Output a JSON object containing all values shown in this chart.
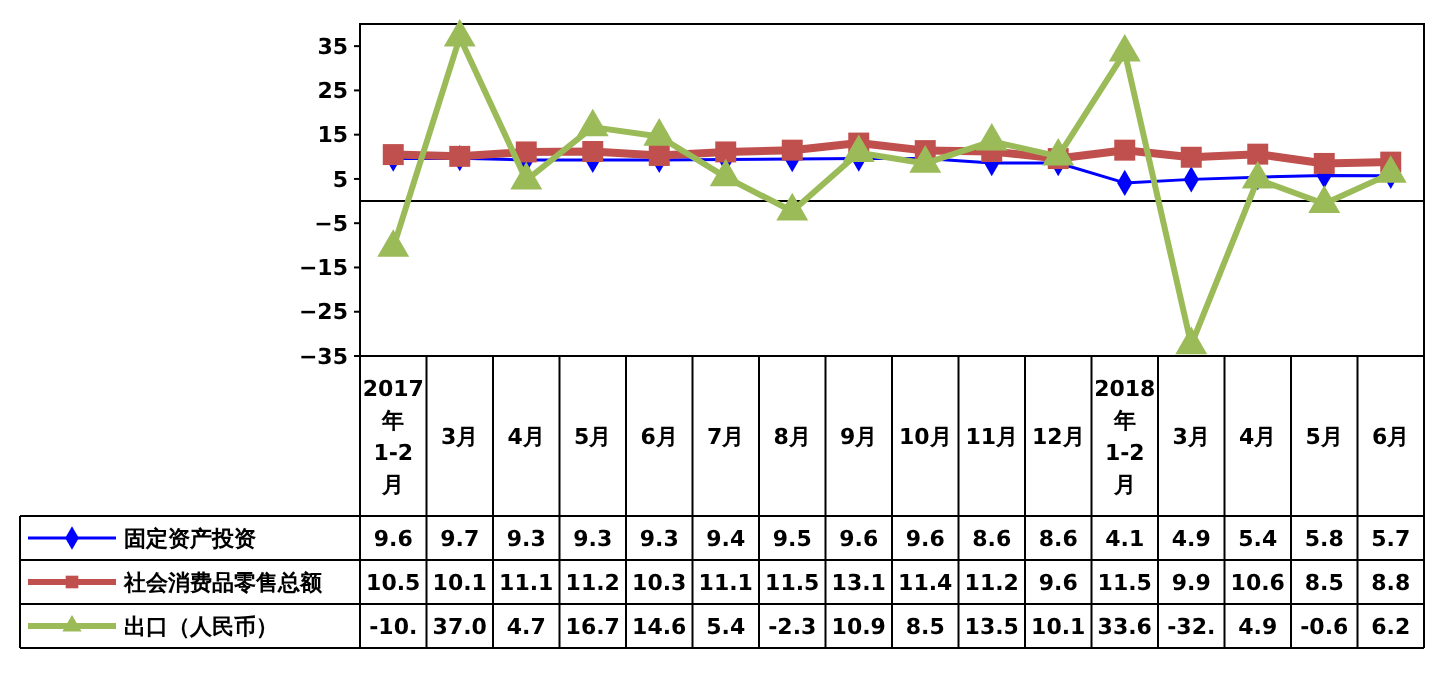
{
  "chart_data": {
    "type": "line",
    "categories": [
      "2017年1-2月",
      "3月",
      "4月",
      "5月",
      "6月",
      "7月",
      "8月",
      "9月",
      "10月",
      "11月",
      "12月",
      "2018年1-2月",
      "3月",
      "4月",
      "5月",
      "6月"
    ],
    "series": [
      {
        "name": "固定资产投资",
        "color": "#0000ff",
        "marker": "diamond",
        "values": [
          9.6,
          9.7,
          9.3,
          9.3,
          9.3,
          9.4,
          9.5,
          9.6,
          9.6,
          8.6,
          8.6,
          4.1,
          4.9,
          5.4,
          5.8,
          5.7
        ],
        "value_labels": [
          "9.6",
          "9.7",
          "9.3",
          "9.3",
          "9.3",
          "9.4",
          "9.5",
          "9.6",
          "9.6",
          "8.6",
          "8.6",
          "4.1",
          "4.9",
          "5.4",
          "5.8",
          "5.7"
        ]
      },
      {
        "name": "社会消费品零售总额",
        "color": "#c0504d",
        "marker": "square",
        "values": [
          10.5,
          10.1,
          11.1,
          11.2,
          10.3,
          11.1,
          11.5,
          13.1,
          11.4,
          11.2,
          9.6,
          11.5,
          9.9,
          10.6,
          8.5,
          8.8
        ],
        "value_labels": [
          "10.5",
          "10.1",
          "11.1",
          "11.2",
          "10.3",
          "11.1",
          "11.5",
          "13.1",
          "11.4",
          "11.2",
          "9.6",
          "11.5",
          "9.9",
          "10.6",
          "8.5",
          "8.8"
        ]
      },
      {
        "name": "出口（人民币）",
        "color": "#9bbb59",
        "marker": "triangle",
        "values": [
          -10.5,
          37.0,
          4.7,
          16.7,
          14.6,
          5.4,
          -2.3,
          10.9,
          8.5,
          13.5,
          10.1,
          33.6,
          -32.5,
          4.9,
          -0.6,
          6.2
        ],
        "value_labels": [
          "-10.",
          "37.0",
          "4.7",
          "16.7",
          "14.6",
          "5.4",
          "-2.3",
          "10.9",
          "8.5",
          "13.5",
          "10.1",
          "33.6",
          "-32.",
          "4.9",
          "-0.6",
          "6.2"
        ]
      }
    ],
    "ylim": [
      -35,
      40
    ],
    "yticks": [
      35,
      25,
      15,
      5,
      -5,
      -15,
      -25,
      -35
    ],
    "grid": false,
    "legend": "bottom left"
  }
}
